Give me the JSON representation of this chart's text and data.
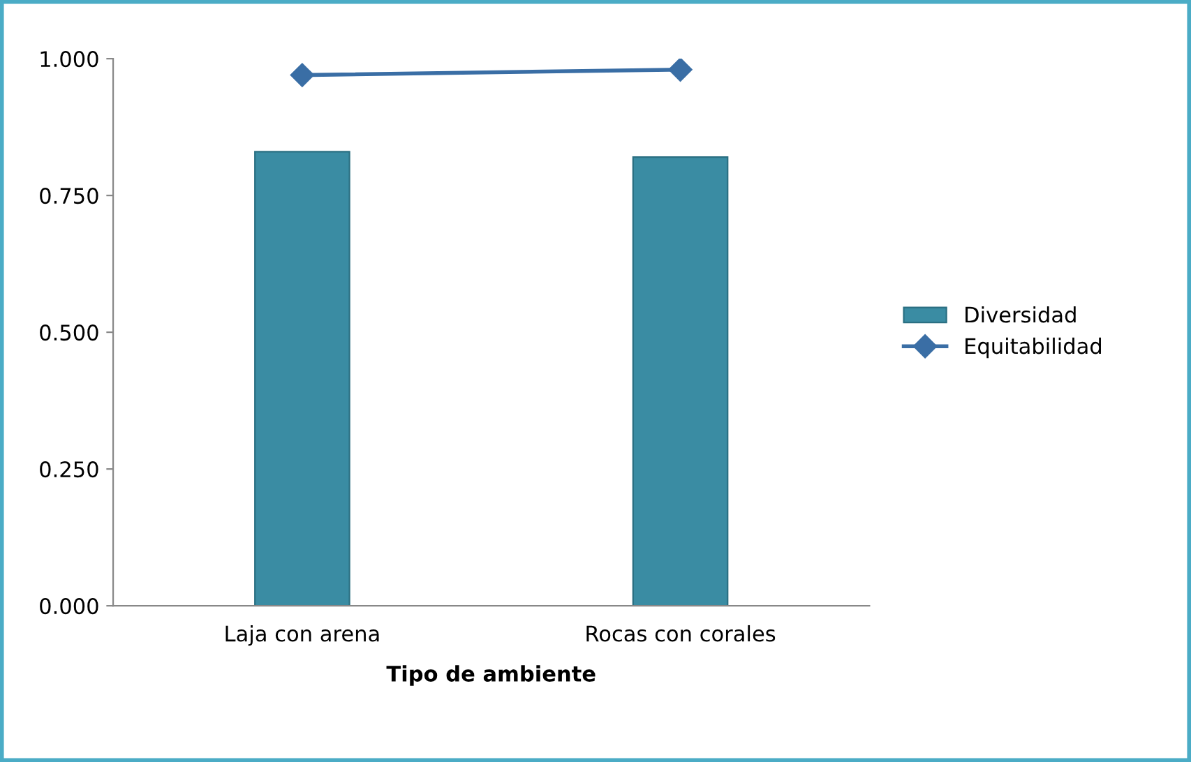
{
  "chart_data": {
    "type": "bar",
    "xlabel": "Tipo de ambiente",
    "categories": [
      "Laja con arena",
      "Rocas con corales"
    ],
    "series": [
      {
        "name": "Diversidad",
        "color": "#3a8ca3",
        "values": [
          0.83,
          0.82
        ]
      },
      {
        "name": "Equitabilidad",
        "type": "line",
        "color": "#3a6ea5",
        "marker": "diamond",
        "values": [
          0.97,
          0.98
        ]
      }
    ],
    "ylim": [
      0,
      1
    ],
    "yticks": [
      {
        "value": 0,
        "label": "0.000"
      },
      {
        "value": 0.25,
        "label": "0.250"
      },
      {
        "value": 0.5,
        "label": "0.500"
      },
      {
        "value": 0.75,
        "label": "0.750"
      },
      {
        "value": 1,
        "label": "1.000"
      }
    ],
    "grid": false,
    "legend": "right"
  }
}
